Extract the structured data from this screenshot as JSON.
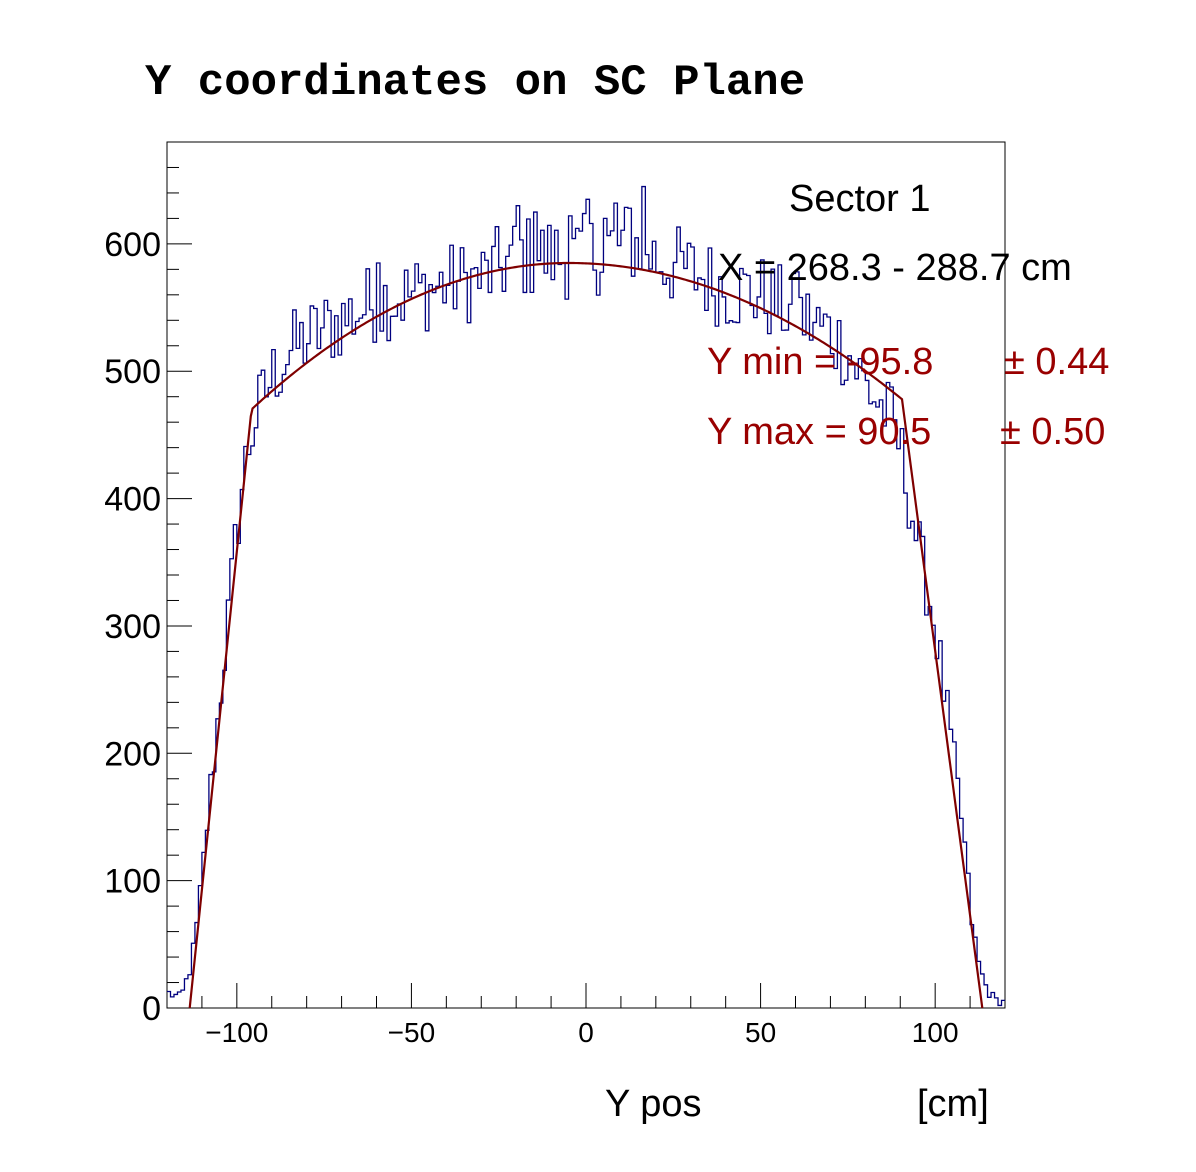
{
  "chart_data": {
    "type": "histogram",
    "title": "Y coordinates on SC Plane",
    "xlabel": "Y pos",
    "xunit": "[cm]",
    "ylabel": "",
    "xlim": [
      -120,
      120
    ],
    "ylim": [
      0,
      680
    ],
    "x_ticks": [
      -100,
      -50,
      0,
      50,
      100
    ],
    "x_tick_labels": [
      "−100",
      "−50",
      "0",
      "50",
      "100"
    ],
    "y_ticks": [
      0,
      100,
      200,
      300,
      400,
      500,
      600
    ],
    "y_tick_labels": [
      "0",
      "100",
      "200",
      "300",
      "400",
      "500",
      "600"
    ],
    "grid": false,
    "colors": {
      "histogram": "#00007f",
      "fit": "#7f0000",
      "fit_text": "#990000",
      "text": "#000000"
    },
    "histogram": {
      "bin_width": 1,
      "x_start": -120,
      "control_points": [
        [
          -120,
          12
        ],
        [
          -116,
          8
        ],
        [
          -114,
          25
        ],
        [
          -112,
          50
        ],
        [
          -110,
          100
        ],
        [
          -108,
          160
        ],
        [
          -106,
          210
        ],
        [
          -104,
          265
        ],
        [
          -102,
          320
        ],
        [
          -100,
          375
        ],
        [
          -98,
          420
        ],
        [
          -96,
          450
        ],
        [
          -94,
          468
        ],
        [
          -90,
          495
        ],
        [
          -85,
          515
        ],
        [
          -80,
          525
        ],
        [
          -70,
          540
        ],
        [
          -60,
          555
        ],
        [
          -50,
          560
        ],
        [
          -40,
          568
        ],
        [
          -30,
          572
        ],
        [
          -20,
          590
        ],
        [
          -10,
          590
        ],
        [
          0,
          590
        ],
        [
          10,
          600
        ],
        [
          16,
          600
        ],
        [
          20,
          588
        ],
        [
          30,
          578
        ],
        [
          40,
          565
        ],
        [
          50,
          560
        ],
        [
          60,
          545
        ],
        [
          70,
          530
        ],
        [
          75,
          515
        ],
        [
          80,
          490
        ],
        [
          85,
          470
        ],
        [
          88,
          460
        ],
        [
          90,
          440
        ],
        [
          92,
          410
        ],
        [
          95,
          365
        ],
        [
          100,
          300
        ],
        [
          105,
          200
        ],
        [
          108,
          140
        ],
        [
          110,
          80
        ],
        [
          112,
          40
        ],
        [
          114,
          20
        ],
        [
          116,
          10
        ],
        [
          118,
          5
        ],
        [
          120,
          5
        ]
      ],
      "peaks": [
        [
          -15,
          625
        ],
        [
          -5,
          622
        ],
        [
          5,
          620
        ],
        [
          12,
          628
        ],
        [
          16,
          645
        ],
        [
          -60,
          585
        ],
        [
          60,
          578
        ],
        [
          -20,
          630
        ],
        [
          0,
          635
        ],
        [
          8,
          632
        ]
      ]
    },
    "fit": {
      "ymin": -95.8,
      "ymax": 90.5,
      "plateau_left": 470,
      "plateau_right": 478,
      "plateau_peak": 585,
      "plateau_peak_x": -5,
      "zero_left": -113.5,
      "zero_right": 113.5
    },
    "stats": {
      "sector": "Sector 1",
      "x_range": "X = 268.3 - 288.7 cm",
      "ymin_label": "Y min = -95.8",
      "ymin_err": "± 0.44",
      "ymax_label": "Y max = 90.5",
      "ymax_err": "± 0.50"
    }
  }
}
